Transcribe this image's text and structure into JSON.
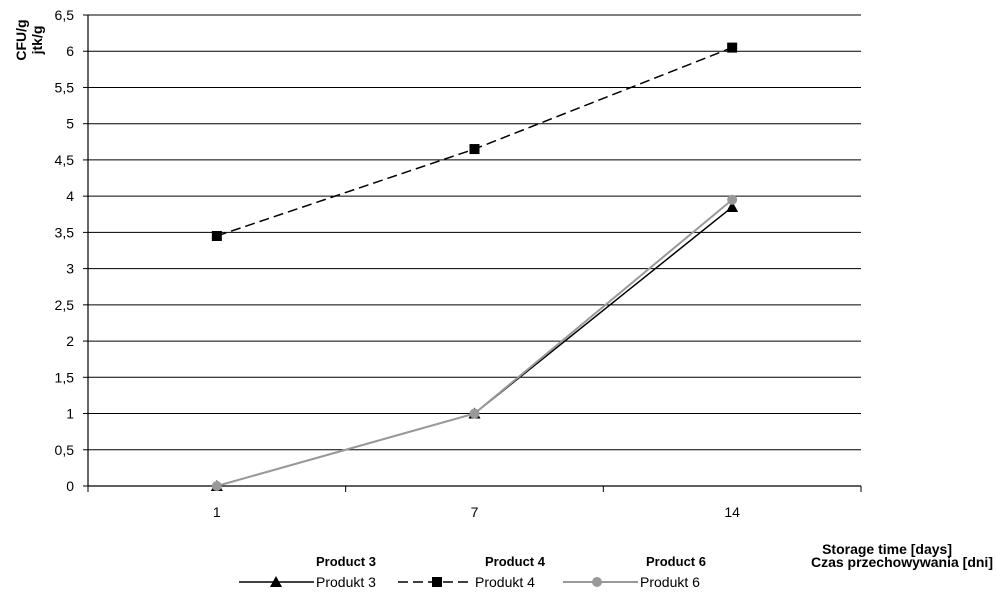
{
  "chart_data": {
    "type": "line",
    "categories": [
      "1",
      "7",
      "14"
    ],
    "ylabel_en": "CFU/g",
    "ylabel_pl": "jtk/g",
    "xlabel_en": "Storage time [days]",
    "xlabel_pl": "Czas przechowywania [dni]",
    "ylim": [
      0,
      6.5
    ],
    "yticks": [
      "0",
      "0,5",
      "1",
      "1,5",
      "2",
      "2,5",
      "3",
      "3,5",
      "4",
      "4,5",
      "5",
      "5,5",
      "6",
      "6,5"
    ],
    "grid": true,
    "legend_position": "bottom",
    "series": [
      {
        "name_en": "Product 3",
        "name_pl": "Produkt 3",
        "values": [
          0,
          1,
          3.85
        ],
        "color": "#000000",
        "dash": "solid",
        "marker": "triangle"
      },
      {
        "name_en": "Product 4",
        "name_pl": "Produkt 4",
        "values": [
          3.45,
          4.65,
          6.05
        ],
        "color": "#000000",
        "dash": "dashed",
        "marker": "square"
      },
      {
        "name_en": "Product 6",
        "name_pl": "Produkt 6",
        "values": [
          0,
          1,
          3.95
        ],
        "color": "#999999",
        "dash": "solid",
        "marker": "circle"
      }
    ]
  }
}
